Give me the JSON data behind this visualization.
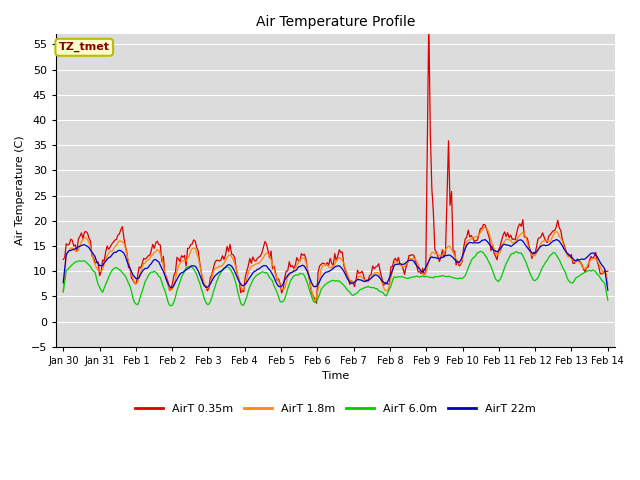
{
  "title": "Air Temperature Profile",
  "xlabel": "Time",
  "ylabel": "Air Temperature (C)",
  "ylim": [
    -5,
    57
  ],
  "yticks": [
    -5,
    0,
    5,
    10,
    15,
    20,
    25,
    30,
    35,
    40,
    45,
    50,
    55
  ],
  "background_color": "#dcdcdc",
  "annotation_text": "TZ_tmet",
  "annotation_bg": "#ffffcc",
  "annotation_border": "#bbbb00",
  "annotation_color": "#880000",
  "colors": {
    "AirT 0.35m": "#dd0000",
    "AirT 1.8m": "#ff8800",
    "AirT 6.0m": "#00cc00",
    "AirT 22m": "#0000cc"
  },
  "legend_labels": [
    "AirT 0.35m",
    "AirT 1.8m",
    "AirT 6.0m",
    "AirT 22m"
  ],
  "day_labels": [
    "Jan 30",
    "Jan 31",
    "Feb 1",
    "Feb 2",
    "Feb 3",
    "Feb 4",
    "Feb 5",
    "Feb 6",
    "Feb 7",
    "Feb 8",
    "Feb 9",
    "Feb 10",
    "Feb 11",
    "Feb 12",
    "Feb 13",
    "Feb 14"
  ]
}
